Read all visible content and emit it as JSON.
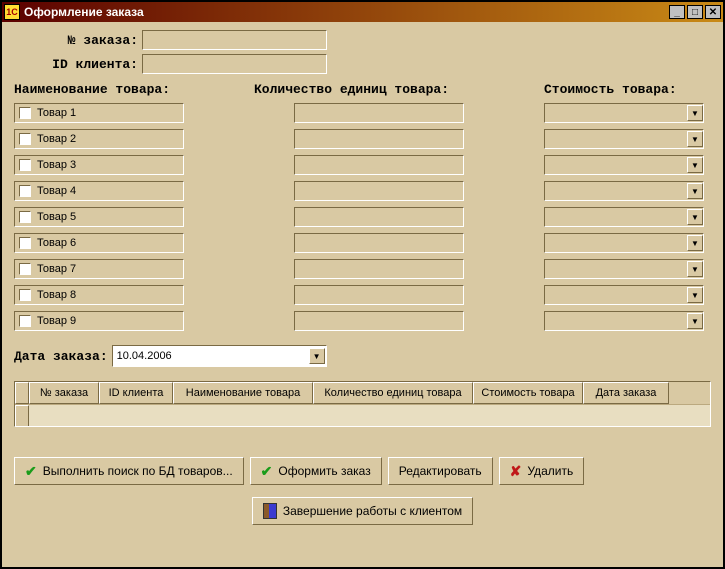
{
  "window": {
    "title": "Оформление заказа",
    "appicon_text": "1C"
  },
  "labels": {
    "order_no": "№ заказа:",
    "client_id": "ID клиента:",
    "product_name": "Наименование товара:",
    "qty": "Количество единиц товара:",
    "cost": "Стоимость товара:",
    "order_date": "Дата заказа:"
  },
  "products": [
    {
      "label": "Товар 1"
    },
    {
      "label": "Товар 2"
    },
    {
      "label": "Товар 3"
    },
    {
      "label": "Товар 4"
    },
    {
      "label": "Товар 5"
    },
    {
      "label": "Товар 6"
    },
    {
      "label": "Товар 7"
    },
    {
      "label": "Товар 8"
    },
    {
      "label": "Товар 9"
    }
  ],
  "date_value": "10.04.2006",
  "grid": {
    "columns": [
      "№ заказа",
      "ID клиента",
      "Наименование товара",
      "Количество единиц товара",
      "Стоимость товара",
      "Дата заказа"
    ]
  },
  "buttons": {
    "search": "Выполнить поиск по БД товаров...",
    "submit": "Оформить заказ",
    "edit": "Редактировать",
    "delete": "Удалить",
    "finish": "Завершение работы с клиентом"
  },
  "glyphs": {
    "min": "_",
    "max": "□",
    "close": "✕",
    "down": "▼",
    "check": "✔",
    "cross": "✘"
  },
  "colors": {
    "bg": "#d9c9a3",
    "title_start": "#5b0000",
    "title_end": "#c98a16",
    "border_dark": "#7a6a44",
    "border_light": "#ffffff",
    "green": "#1a9c1a",
    "red": "#c01818"
  }
}
